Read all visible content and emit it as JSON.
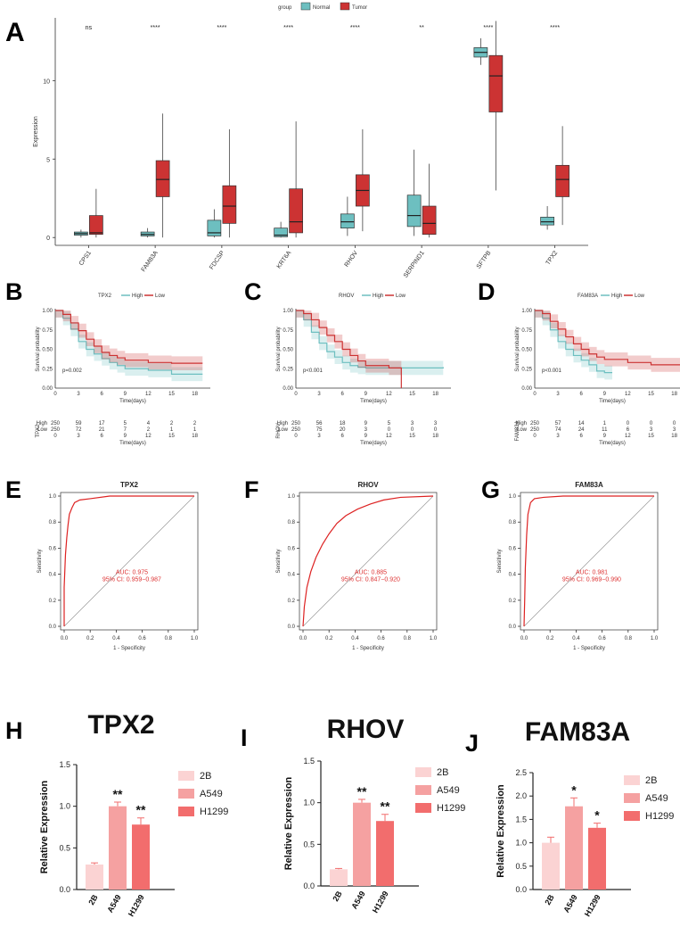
{
  "panel_labels": [
    "A",
    "B",
    "C",
    "D",
    "E",
    "F",
    "G",
    "H",
    "I",
    "J"
  ],
  "chart_data": [
    {
      "id": "A",
      "type": "boxplot",
      "ylabel": "Expression",
      "ylim": [
        -0.5,
        14
      ],
      "yticks": [
        0,
        5,
        10
      ],
      "legend_title": "group",
      "groups": [
        {
          "name": "Normal",
          "color": "#6dbfc0"
        },
        {
          "name": "Tumor",
          "color": "#cc3333"
        }
      ],
      "categories": [
        "CPS1",
        "FAM83A",
        "FDCSP",
        "KRT6A",
        "RHOV",
        "SERPIND1",
        "SFTPB",
        "TPX2"
      ],
      "significance": [
        "ns",
        "****",
        "****",
        "****",
        "****",
        "**",
        "****",
        "****"
      ],
      "normal": [
        {
          "min": 0.0,
          "q1": 0.15,
          "med": 0.25,
          "q3": 0.35,
          "max": 0.5
        },
        {
          "min": 0.0,
          "q1": 0.1,
          "med": 0.2,
          "q3": 0.35,
          "max": 0.6
        },
        {
          "min": 0.0,
          "q1": 0.1,
          "med": 0.3,
          "q3": 1.1,
          "max": 1.8
        },
        {
          "min": 0.0,
          "q1": 0.05,
          "med": 0.15,
          "q3": 0.6,
          "max": 1.0
        },
        {
          "min": 0.1,
          "q1": 0.6,
          "med": 1.0,
          "q3": 1.5,
          "max": 2.6
        },
        {
          "min": 0.1,
          "q1": 0.7,
          "med": 1.4,
          "q3": 2.7,
          "max": 5.6
        },
        {
          "min": 11.0,
          "q1": 11.5,
          "med": 11.8,
          "q3": 12.1,
          "max": 12.7
        },
        {
          "min": 0.5,
          "q1": 0.8,
          "med": 1.0,
          "q3": 1.3,
          "max": 2.0
        }
      ],
      "tumor": [
        {
          "min": 0.0,
          "q1": 0.2,
          "med": 0.3,
          "q3": 1.4,
          "max": 3.1
        },
        {
          "min": 0.0,
          "q1": 2.6,
          "med": 3.7,
          "q3": 4.9,
          "max": 7.9
        },
        {
          "min": 0.0,
          "q1": 0.9,
          "med": 2.0,
          "q3": 3.3,
          "max": 6.9
        },
        {
          "min": 0.0,
          "q1": 0.3,
          "med": 1.0,
          "q3": 3.1,
          "max": 7.4
        },
        {
          "min": 0.4,
          "q1": 2.0,
          "med": 3.0,
          "q3": 4.0,
          "max": 6.9
        },
        {
          "min": 0.0,
          "q1": 0.2,
          "med": 0.9,
          "q3": 2.0,
          "max": 4.7
        },
        {
          "min": 3.0,
          "q1": 8.0,
          "med": 10.3,
          "q3": 11.6,
          "max": 13.8
        },
        {
          "min": 0.8,
          "q1": 2.6,
          "med": 3.7,
          "q3": 4.6,
          "max": 7.1
        }
      ]
    },
    {
      "id": "B",
      "type": "survival",
      "gene": "TPX2",
      "legend_title": "TPX2",
      "legend": [
        "High",
        "Low"
      ],
      "pvalue": "p=0.002",
      "xlabel": "Time(days)",
      "ylabel": "Survival probability",
      "xticks": [
        0,
        3,
        6,
        9,
        12,
        15,
        18
      ],
      "yticks": [
        "0.00",
        "0.25",
        "0.50",
        "0.75",
        "1.00"
      ],
      "high": [
        [
          0,
          1.0
        ],
        [
          1,
          0.9
        ],
        [
          2,
          0.76
        ],
        [
          3,
          0.6
        ],
        [
          4,
          0.5
        ],
        [
          5,
          0.44
        ],
        [
          6,
          0.38
        ],
        [
          7,
          0.33
        ],
        [
          8,
          0.29
        ],
        [
          9,
          0.25
        ],
        [
          12,
          0.23
        ],
        [
          15,
          0.18
        ],
        [
          19,
          0.18
        ]
      ],
      "low": [
        [
          0,
          1.0
        ],
        [
          1,
          0.95
        ],
        [
          2,
          0.84
        ],
        [
          3,
          0.74
        ],
        [
          4,
          0.63
        ],
        [
          5,
          0.54
        ],
        [
          6,
          0.46
        ],
        [
          7,
          0.42
        ],
        [
          8,
          0.39
        ],
        [
          9,
          0.36
        ],
        [
          12,
          0.33
        ],
        [
          15,
          0.32
        ],
        [
          19,
          0.32
        ]
      ],
      "risk_label": "TPX2",
      "risk_header": "Time(days)",
      "risk_high": [
        "250",
        "59",
        "17",
        "5",
        "4",
        "2",
        "2"
      ],
      "risk_low": [
        "250",
        "72",
        "21",
        "7",
        "2",
        "1",
        "1"
      ]
    },
    {
      "id": "C",
      "type": "survival",
      "gene": "RHOV",
      "legend_title": "RHOV",
      "legend": [
        "High",
        "Low"
      ],
      "pvalue": "p<0.001",
      "xlabel": "Time(days)",
      "ylabel": "Survival probability",
      "xticks": [
        0,
        3,
        6,
        9,
        12,
        15,
        18
      ],
      "yticks": [
        "0.00",
        "0.25",
        "0.50",
        "0.75",
        "1.00"
      ],
      "high": [
        [
          0,
          1.0
        ],
        [
          1,
          0.88
        ],
        [
          2,
          0.72
        ],
        [
          3,
          0.58
        ],
        [
          4,
          0.47
        ],
        [
          5,
          0.4
        ],
        [
          6,
          0.33
        ],
        [
          7,
          0.29
        ],
        [
          8,
          0.27
        ],
        [
          9,
          0.26
        ],
        [
          12,
          0.26
        ],
        [
          15,
          0.26
        ],
        [
          19,
          0.27
        ]
      ],
      "low": [
        [
          0,
          1.0
        ],
        [
          1,
          0.96
        ],
        [
          2,
          0.88
        ],
        [
          3,
          0.78
        ],
        [
          4,
          0.68
        ],
        [
          5,
          0.6
        ],
        [
          6,
          0.5
        ],
        [
          7,
          0.42
        ],
        [
          8,
          0.35
        ],
        [
          9,
          0.29
        ],
        [
          12,
          0.26
        ],
        [
          13.5,
          0.26
        ],
        [
          13.6,
          0.0
        ]
      ],
      "risk_label": "RHOV",
      "risk_header": "Time(days)",
      "risk_high": [
        "250",
        "56",
        "18",
        "9",
        "5",
        "3",
        "3"
      ],
      "risk_low": [
        "250",
        "75",
        "20",
        "3",
        "0",
        "0",
        "0"
      ]
    },
    {
      "id": "D",
      "type": "survival",
      "gene": "FAM83A",
      "legend_title": "FAM83A",
      "legend": [
        "High",
        "Low"
      ],
      "pvalue": "p<0.001",
      "xlabel": "Time(days)",
      "ylabel": "Survival probability",
      "xticks": [
        0,
        3,
        6,
        9,
        12,
        15,
        18
      ],
      "yticks": [
        "0.00",
        "0.25",
        "0.50",
        "0.75",
        "1.00"
      ],
      "high": [
        [
          0,
          1.0
        ],
        [
          1,
          0.9
        ],
        [
          2,
          0.75
        ],
        [
          3,
          0.6
        ],
        [
          4,
          0.5
        ],
        [
          5,
          0.42
        ],
        [
          6,
          0.36
        ],
        [
          7,
          0.3
        ],
        [
          8,
          0.22
        ],
        [
          9,
          0.2
        ],
        [
          10,
          0.2
        ]
      ],
      "low": [
        [
          0,
          1.0
        ],
        [
          1,
          0.96
        ],
        [
          2,
          0.86
        ],
        [
          3,
          0.76
        ],
        [
          4,
          0.66
        ],
        [
          5,
          0.57
        ],
        [
          6,
          0.5
        ],
        [
          7,
          0.44
        ],
        [
          8,
          0.4
        ],
        [
          9,
          0.37
        ],
        [
          12,
          0.33
        ],
        [
          15,
          0.3
        ],
        [
          19,
          0.3
        ]
      ],
      "risk_label": "FAM83A",
      "risk_header": "Time(days)",
      "risk_high": [
        "250",
        "57",
        "14",
        "1",
        "0",
        "0",
        "0"
      ],
      "risk_low": [
        "250",
        "74",
        "24",
        "11",
        "6",
        "3",
        "3"
      ]
    },
    {
      "id": "E",
      "type": "roc",
      "title": "TPX2",
      "xlabel": "1 - Specificity",
      "ylabel": "Sensitivity",
      "ticks": [
        "0.0",
        "0.2",
        "0.4",
        "0.6",
        "0.8",
        "1.0"
      ],
      "auc": "AUC: 0.975",
      "ci": "95% CI: 0.959−0.987",
      "curve": [
        [
          0,
          0
        ],
        [
          0,
          0.3
        ],
        [
          0.01,
          0.55
        ],
        [
          0.02,
          0.68
        ],
        [
          0.03,
          0.78
        ],
        [
          0.04,
          0.86
        ],
        [
          0.06,
          0.91
        ],
        [
          0.08,
          0.95
        ],
        [
          0.12,
          0.97
        ],
        [
          0.2,
          0.98
        ],
        [
          0.35,
          1.0
        ],
        [
          1,
          1.0
        ]
      ]
    },
    {
      "id": "F",
      "type": "roc",
      "title": "RHOV",
      "xlabel": "1 - Specificity",
      "ylabel": "Sensitivity",
      "ticks": [
        "0.0",
        "0.2",
        "0.4",
        "0.6",
        "0.8",
        "1.0"
      ],
      "auc": "AUC: 0.885",
      "ci": "95% CI: 0.847−0.920",
      "curve": [
        [
          0,
          0
        ],
        [
          0.01,
          0.15
        ],
        [
          0.03,
          0.3
        ],
        [
          0.06,
          0.42
        ],
        [
          0.1,
          0.53
        ],
        [
          0.15,
          0.63
        ],
        [
          0.2,
          0.71
        ],
        [
          0.26,
          0.79
        ],
        [
          0.33,
          0.85
        ],
        [
          0.42,
          0.9
        ],
        [
          0.52,
          0.94
        ],
        [
          0.62,
          0.97
        ],
        [
          0.75,
          0.99
        ],
        [
          1,
          1.0
        ]
      ]
    },
    {
      "id": "G",
      "type": "roc",
      "title": "FAM83A",
      "xlabel": "1 - Specificity",
      "ylabel": "Sensitivity",
      "ticks": [
        "0.0",
        "0.2",
        "0.4",
        "0.6",
        "0.8",
        "1.0"
      ],
      "auc": "AUC: 0.981",
      "ci": "95% CI: 0.969−0.990",
      "curve": [
        [
          0,
          0
        ],
        [
          0.005,
          0.2
        ],
        [
          0.01,
          0.45
        ],
        [
          0.02,
          0.7
        ],
        [
          0.03,
          0.86
        ],
        [
          0.05,
          0.95
        ],
        [
          0.08,
          0.98
        ],
        [
          0.15,
          0.99
        ],
        [
          0.3,
          1.0
        ],
        [
          1,
          1.0
        ]
      ]
    },
    {
      "id": "H",
      "type": "bar",
      "title": "TPX2",
      "ylabel": "Relative Expression",
      "categories": [
        "2B",
        "A549",
        "H1299"
      ],
      "values": [
        0.3,
        1.0,
        0.78
      ],
      "errors": [
        0.02,
        0.05,
        0.08
      ],
      "colors": [
        "#fbd3d3",
        "#f5a1a1",
        "#f26d6d"
      ],
      "significance": [
        "",
        "**",
        "**"
      ],
      "yticks": [
        "0.0",
        "0.5",
        "1.0",
        "1.5"
      ],
      "ylim": [
        0,
        1.5
      ],
      "legend": [
        "2B",
        "A549",
        "H1299"
      ]
    },
    {
      "id": "I",
      "type": "bar",
      "title": "RHOV",
      "ylabel": "Relative Expression",
      "categories": [
        "2B",
        "A549",
        "H1299"
      ],
      "values": [
        0.2,
        1.0,
        0.78
      ],
      "errors": [
        0.01,
        0.04,
        0.08
      ],
      "colors": [
        "#fbd3d3",
        "#f5a1a1",
        "#f26d6d"
      ],
      "significance": [
        "",
        "**",
        "**"
      ],
      "yticks": [
        "0.0",
        "0.5",
        "1.0",
        "1.5"
      ],
      "ylim": [
        0,
        1.5
      ],
      "legend": [
        "2B",
        "A549",
        "H1299"
      ]
    },
    {
      "id": "J",
      "type": "bar",
      "title": "FAM83A",
      "ylabel": "Relative Expression",
      "categories": [
        "2B",
        "A549",
        "H1299"
      ],
      "values": [
        1.0,
        1.78,
        1.32
      ],
      "errors": [
        0.12,
        0.18,
        0.1
      ],
      "colors": [
        "#fbd3d3",
        "#f5a1a1",
        "#f26d6d"
      ],
      "significance": [
        "",
        "*",
        "*"
      ],
      "yticks": [
        "0.0",
        "0.5",
        "1.0",
        "1.5",
        "2.0",
        "2.5"
      ],
      "ylim": [
        0,
        2.5
      ],
      "legend": [
        "2B",
        "A549",
        "H1299"
      ]
    }
  ]
}
